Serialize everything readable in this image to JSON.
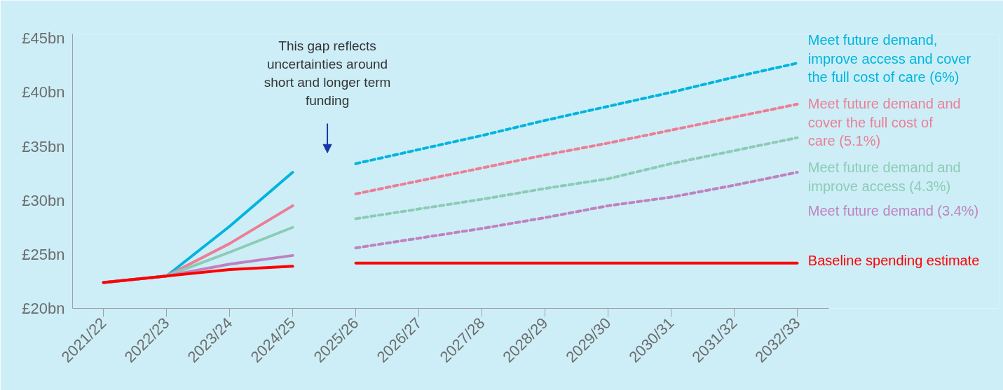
{
  "chart_data": {
    "type": "line",
    "categories": [
      "2021/22",
      "2022/23",
      "2023/24",
      "2024/25",
      "2025/26",
      "2026/27",
      "2027/28",
      "2028/29",
      "2029/30",
      "2030/31",
      "2031/32",
      "2032/33"
    ],
    "ylim": [
      20,
      45.4
    ],
    "yticks": [
      {
        "value": 20,
        "label": "£20bn"
      },
      {
        "value": 25,
        "label": "£25bn"
      },
      {
        "value": 30,
        "label": "£30bn"
      },
      {
        "value": 35,
        "label": "£35bn"
      },
      {
        "value": 40,
        "label": "£40bn"
      },
      {
        "value": 45,
        "label": "£45bn"
      }
    ],
    "grid": false,
    "legend": false,
    "marker": "none",
    "annotations": [
      "This gap reflects uncertainties around short and longer term funding"
    ],
    "series": [
      {
        "color": "#00b5dd",
        "line_style": "solid",
        "values": [
          22.4,
          23.0,
          27.6,
          32.6,
          null,
          null,
          null,
          null,
          null,
          null,
          null,
          null
        ]
      },
      {
        "color": "#ec7e95",
        "line_style": "solid",
        "values": [
          22.4,
          23.0,
          26.0,
          29.5,
          null,
          null,
          null,
          null,
          null,
          null,
          null,
          null
        ]
      },
      {
        "color": "#8ccbb5",
        "line_style": "solid",
        "values": [
          22.4,
          23.0,
          25.2,
          27.5,
          null,
          null,
          null,
          null,
          null,
          null,
          null,
          null
        ]
      },
      {
        "color": "#bf82bf",
        "line_style": "solid",
        "values": [
          22.4,
          23.0,
          24.1,
          24.9,
          null,
          null,
          null,
          null,
          null,
          null,
          null,
          null
        ]
      },
      {
        "color": "#ff0000",
        "line_style": "solid",
        "values": [
          22.4,
          23.0,
          23.6,
          23.9,
          null,
          null,
          null,
          null,
          null,
          null,
          null,
          null
        ]
      },
      {
        "name": "Meet future demand, improve access and cover the full cost of care (6%)",
        "color": "#00b5dd",
        "line_style": "dashed",
        "values": [
          null,
          null,
          null,
          null,
          33.4,
          34.7,
          36.0,
          37.4,
          38.7,
          40.0,
          41.4,
          42.7
        ]
      },
      {
        "name": "Meet future demand and cover the full cost of care (5.1%)",
        "color": "#ec7e95",
        "line_style": "dashed",
        "values": [
          null,
          null,
          null,
          null,
          30.6,
          31.8,
          33.0,
          34.2,
          35.3,
          36.5,
          37.7,
          38.9
        ]
      },
      {
        "name": "Meet future demand and improve access (4.3%)",
        "color": "#8ccbb5",
        "line_style": "dashed",
        "values": [
          null,
          null,
          null,
          null,
          28.3,
          29.2,
          30.1,
          31.1,
          32.0,
          33.4,
          34.6,
          35.8
        ]
      },
      {
        "name": "Meet future demand (3.4%)",
        "color": "#bf82bf",
        "line_style": "dashed",
        "values": [
          null,
          null,
          null,
          null,
          25.6,
          26.5,
          27.4,
          28.4,
          29.5,
          30.3,
          31.4,
          32.6
        ]
      },
      {
        "name": "Baseline spending estimate",
        "color": "#ff0000",
        "line_style": "solid",
        "values": [
          null,
          null,
          null,
          null,
          24.2,
          24.2,
          24.2,
          24.2,
          24.2,
          24.2,
          24.2,
          24.2
        ]
      }
    ]
  }
}
